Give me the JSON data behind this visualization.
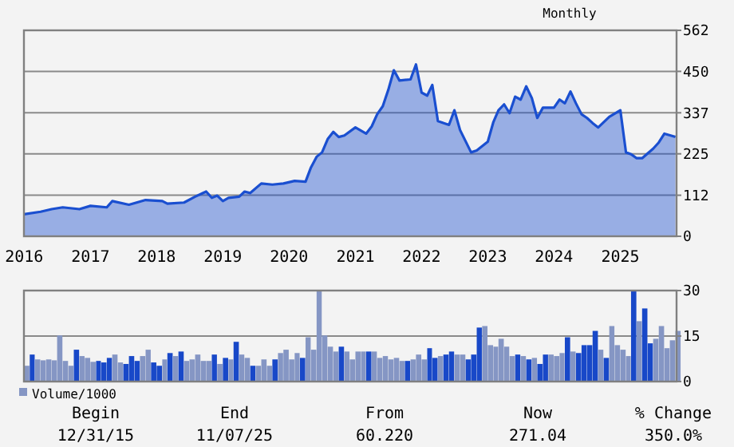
{
  "chart_data": [
    {
      "type": "area",
      "subtitle": "Monthly",
      "x": [
        "2016-01",
        "2016-04",
        "2016-06",
        "2016-08",
        "2016-11",
        "2017-01",
        "2017-04",
        "2017-05",
        "2017-08",
        "2017-11",
        "2018-02",
        "2018-03",
        "2018-06",
        "2018-08",
        "2018-10",
        "2018-11",
        "2018-12",
        "2019-01",
        "2019-02",
        "2019-04",
        "2019-05",
        "2019-06",
        "2019-08",
        "2019-10",
        "2019-12",
        "2020-02",
        "2020-04",
        "2020-05",
        "2020-06",
        "2020-07",
        "2020-08",
        "2020-09",
        "2020-10",
        "2020-11",
        "2021-01",
        "2021-03",
        "2021-04",
        "2021-05",
        "2021-06",
        "2021-07",
        "2021-08",
        "2021-09",
        "2021-11",
        "2021-12",
        "2022-01",
        "2022-02",
        "2022-03",
        "2022-04",
        "2022-06",
        "2022-07",
        "2022-08",
        "2022-10",
        "2022-11",
        "2023-01",
        "2023-02",
        "2023-03",
        "2023-04",
        "2023-05",
        "2023-06",
        "2023-07",
        "2023-08",
        "2023-09",
        "2023-10",
        "2023-11",
        "2024-01",
        "2024-02",
        "2024-03",
        "2024-04",
        "2024-05",
        "2024-06",
        "2024-07",
        "2024-08",
        "2024-09",
        "2024-11",
        "2025-01",
        "2025-02",
        "2025-03",
        "2025-04",
        "2025-05",
        "2025-07",
        "2025-08",
        "2025-09",
        "2025-11"
      ],
      "series": [
        {
          "color": "#1a4fd0",
          "values": [
            60,
            67,
            74,
            79,
            74,
            83,
            79,
            96,
            86,
            99,
            96,
            89,
            92,
            108,
            122,
            105,
            111,
            96,
            105,
            108,
            122,
            118,
            144,
            141,
            144,
            151,
            149,
            188,
            217,
            229,
            265,
            285,
            271,
            275,
            297,
            280,
            300,
            333,
            355,
            399,
            453,
            425,
            428,
            469,
            392,
            384,
            413,
            314,
            304,
            344,
            290,
            229,
            234,
            258,
            312,
            344,
            360,
            336,
            381,
            373,
            409,
            377,
            323,
            351,
            351,
            373,
            363,
            395,
            363,
            333,
            323,
            309,
            297,
            326,
            344,
            229,
            224,
            213,
            213,
            239,
            256,
            280,
            271
          ]
        }
      ],
      "xlim": [
        "2015-12-31",
        "2025-11-07"
      ],
      "xticks": [
        "2016",
        "2017",
        "2018",
        "2019",
        "2020",
        "2021",
        "2022",
        "2023",
        "2024",
        "2025"
      ],
      "ylim": [
        0,
        562
      ],
      "yticks": [
        0,
        112,
        225,
        337,
        450,
        562
      ],
      "grid": "y"
    },
    {
      "type": "bar",
      "legend": "bottom left",
      "tick_labels": "y",
      "grid": "y",
      "x": [
        "2016-01",
        "2016-02",
        "2016-03",
        "2016-04",
        "2016-05",
        "2016-06",
        "2016-07",
        "2016-08",
        "2016-09",
        "2016-10",
        "2016-11",
        "2016-12",
        "2017-01",
        "2017-02",
        "2017-03",
        "2017-04",
        "2017-05",
        "2017-06",
        "2017-07",
        "2017-08",
        "2017-09",
        "2017-10",
        "2017-11",
        "2017-12",
        "2018-01",
        "2018-02",
        "2018-03",
        "2018-04",
        "2018-05",
        "2018-06",
        "2018-07",
        "2018-08",
        "2018-09",
        "2018-10",
        "2018-11",
        "2018-12",
        "2019-01",
        "2019-02",
        "2019-03",
        "2019-04",
        "2019-05",
        "2019-06",
        "2019-07",
        "2019-08",
        "2019-09",
        "2019-10",
        "2019-11",
        "2019-12",
        "2020-01",
        "2020-02",
        "2020-03",
        "2020-04",
        "2020-05",
        "2020-06",
        "2020-07",
        "2020-08",
        "2020-09",
        "2020-10",
        "2020-11",
        "2020-12",
        "2021-01",
        "2021-02",
        "2021-03",
        "2021-04",
        "2021-05",
        "2021-06",
        "2021-07",
        "2021-08",
        "2021-09",
        "2021-10",
        "2021-11",
        "2021-12",
        "2022-01",
        "2022-02",
        "2022-03",
        "2022-04",
        "2022-05",
        "2022-06",
        "2022-07",
        "2022-08",
        "2022-09",
        "2022-10",
        "2022-11",
        "2022-12",
        "2023-01",
        "2023-02",
        "2023-03",
        "2023-04",
        "2023-05",
        "2023-06",
        "2023-07",
        "2023-08",
        "2023-09",
        "2023-10",
        "2023-11",
        "2023-12",
        "2024-01",
        "2024-02",
        "2024-03",
        "2024-04",
        "2024-05",
        "2024-06",
        "2024-07",
        "2024-08",
        "2024-09",
        "2024-10",
        "2024-11",
        "2024-12",
        "2025-01",
        "2025-02",
        "2025-03",
        "2025-04",
        "2025-05",
        "2025-06",
        "2025-07",
        "2025-08",
        "2025-09",
        "2025-10",
        "2025-11"
      ],
      "series": [
        {
          "name": "Volume/1000",
          "color": "#8596c4",
          "values": [
            5.2,
            8.9,
            7.3,
            7.0,
            7.3,
            7.0,
            15.2,
            6.8,
            5.2,
            10.5,
            8.4,
            7.8,
            6.5,
            6.8,
            6.3,
            7.8,
            8.9,
            6.3,
            5.8,
            8.4,
            6.8,
            8.4,
            10.5,
            6.3,
            5.2,
            7.3,
            9.4,
            8.4,
            9.9,
            6.8,
            7.3,
            8.9,
            6.8,
            6.8,
            8.9,
            5.8,
            7.8,
            7.3,
            13.1,
            8.9,
            7.8,
            5.2,
            5.2,
            7.3,
            5.2,
            7.3,
            9.4,
            10.5,
            7.3,
            9.4,
            7.8,
            14.6,
            10.5,
            30.0,
            15.2,
            11.5,
            9.9,
            11.5,
            9.9,
            7.3,
            9.9,
            9.9,
            9.9,
            9.9,
            7.8,
            8.4,
            7.3,
            7.8,
            6.8,
            6.8,
            7.3,
            8.9,
            7.3,
            11.0,
            7.8,
            8.4,
            8.9,
            9.9,
            8.9,
            8.9,
            7.3,
            8.9,
            17.8,
            18.3,
            12.0,
            11.5,
            14.1,
            11.5,
            8.4,
            8.9,
            8.4,
            7.3,
            7.8,
            5.8,
            8.9,
            8.9,
            8.4,
            9.4,
            14.6,
            9.9,
            9.4,
            12.0,
            12.0,
            16.7,
            10.5,
            7.8,
            18.3,
            12.0,
            10.5,
            8.4,
            29.8,
            19.9,
            24.1,
            12.6,
            14.1,
            18.3,
            11.0,
            13.6,
            16.7
          ],
          "colors": [
            "#8596c4",
            "#1848c8",
            "#8596c4",
            "#8596c4",
            "#8596c4",
            "#8596c4",
            "#8596c4",
            "#8596c4",
            "#8596c4",
            "#1848c8",
            "#8596c4",
            "#8596c4",
            "#8596c4",
            "#1848c8",
            "#1848c8",
            "#1848c8",
            "#8596c4",
            "#8596c4",
            "#1848c8",
            "#1848c8",
            "#1848c8",
            "#8596c4",
            "#8596c4",
            "#1848c8",
            "#1848c8",
            "#8596c4",
            "#1848c8",
            "#8596c4",
            "#1848c8",
            "#8596c4",
            "#8596c4",
            "#8596c4",
            "#8596c4",
            "#8596c4",
            "#1848c8",
            "#8596c4",
            "#1848c8",
            "#8596c4",
            "#1848c8",
            "#8596c4",
            "#8596c4",
            "#1848c8",
            "#8596c4",
            "#8596c4",
            "#8596c4",
            "#1848c8",
            "#8596c4",
            "#8596c4",
            "#8596c4",
            "#8596c4",
            "#1848c8",
            "#8596c4",
            "#8596c4",
            "#8596c4",
            "#8596c4",
            "#8596c4",
            "#8596c4",
            "#1848c8",
            "#8596c4",
            "#8596c4",
            "#8596c4",
            "#8596c4",
            "#1848c8",
            "#8596c4",
            "#8596c4",
            "#8596c4",
            "#8596c4",
            "#8596c4",
            "#8596c4",
            "#1848c8",
            "#8596c4",
            "#8596c4",
            "#8596c4",
            "#1848c8",
            "#1848c8",
            "#8596c4",
            "#1848c8",
            "#1848c8",
            "#8596c4",
            "#8596c4",
            "#1848c8",
            "#1848c8",
            "#1848c8",
            "#8596c4",
            "#8596c4",
            "#8596c4",
            "#8596c4",
            "#8596c4",
            "#8596c4",
            "#1848c8",
            "#8596c4",
            "#1848c8",
            "#8596c4",
            "#1848c8",
            "#1848c8",
            "#8596c4",
            "#8596c4",
            "#8596c4",
            "#1848c8",
            "#8596c4",
            "#1848c8",
            "#1848c8",
            "#1848c8",
            "#1848c8",
            "#8596c4",
            "#1848c8",
            "#8596c4",
            "#8596c4",
            "#8596c4",
            "#8596c4",
            "#1848c8",
            "#8596c4",
            "#1848c8",
            "#1848c8",
            "#8596c4",
            "#8596c4",
            "#8596c4",
            "#8596c4",
            "#8596c4"
          ]
        }
      ],
      "xlim": [
        "2015-12-31",
        "2025-11-07"
      ],
      "ylim": [
        0,
        30
      ],
      "yticks": [
        0,
        15,
        30
      ],
      "annotations": [
        "Begin",
        "End",
        "From",
        "Now",
        "% Change",
        "12/31/15",
        "11/07/25",
        "60.220",
        "271.04",
        "350.0%"
      ]
    }
  ]
}
